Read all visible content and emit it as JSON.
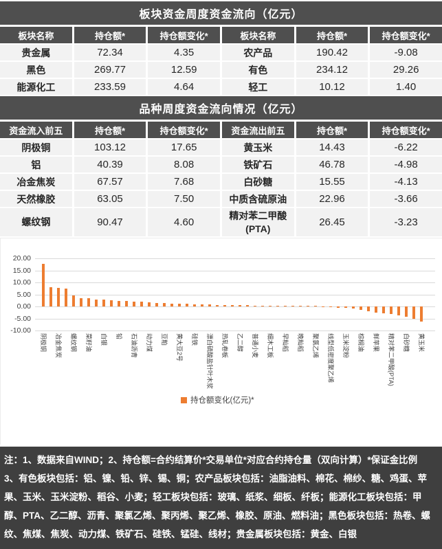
{
  "colors": {
    "header_bg": "#4F4F4F",
    "row_bg": "#F2F2F2",
    "bar": "#ED7D31",
    "notes_bg": "#3F3F3F",
    "gridline": "#D9D9D9"
  },
  "table1": {
    "title": "板块资金周度资金流向（亿元）",
    "headers": [
      "板块名称",
      "持仓额*",
      "持仓额变化*",
      "板块名称",
      "持仓额*",
      "持仓额变化*"
    ],
    "rows": [
      [
        "贵金属",
        "72.34",
        "4.35",
        "农产品",
        "190.42",
        "-9.08"
      ],
      [
        "黑色",
        "269.77",
        "12.59",
        "有色",
        "234.12",
        "29.26"
      ],
      [
        "能源化工",
        "233.59",
        "4.64",
        "轻工",
        "10.12",
        "1.40"
      ]
    ]
  },
  "table2": {
    "title": "品种周度资金流向情况（亿元）",
    "headers": [
      "资金流入前五",
      "持仓额*",
      "持仓额变化*",
      "资金流出前五",
      "持仓额*",
      "持仓额变化*"
    ],
    "rows": [
      [
        "阴极铜",
        "103.12",
        "17.65",
        "黄玉米",
        "14.43",
        "-6.22"
      ],
      [
        "铝",
        "40.39",
        "8.08",
        "铁矿石",
        "46.78",
        "-4.98"
      ],
      [
        "冶金焦炭",
        "67.57",
        "7.68",
        "白砂糖",
        "15.55",
        "-4.13"
      ],
      [
        "天然橡胶",
        "63.05",
        "7.50",
        "中质含硫原油",
        "22.96",
        "-3.66"
      ],
      [
        "螺纹钢",
        "90.47",
        "4.60",
        "精对苯二甲酸(PTA)",
        "26.45",
        "-3.23"
      ]
    ]
  },
  "chart_data": {
    "type": "bar",
    "title": "",
    "xlabel": "",
    "ylabel": "",
    "legend": "持仓额变化(亿元)*",
    "legend_position": "bottom",
    "grid": true,
    "ylim": [
      -10,
      20
    ],
    "ytick_values": [
      20,
      15,
      10,
      5,
      0,
      -5,
      -10
    ],
    "ytick_labels": [
      "20.00",
      "15.00",
      "10.00",
      "5.00",
      "0.00",
      "-5.00",
      "-10.00"
    ],
    "bar_color": "#ED7D31",
    "bars": [
      {
        "label": "阴极铜",
        "value": 17.65
      },
      {
        "label": "",
        "value": 8.08
      },
      {
        "label": "冶金焦炭",
        "value": 7.68
      },
      {
        "label": "",
        "value": 7.5
      },
      {
        "label": "螺纹钢",
        "value": 4.6
      },
      {
        "label": "",
        "value": 3.55
      },
      {
        "label": "菜籽油",
        "value": 3.4
      },
      {
        "label": "",
        "value": 3.0
      },
      {
        "label": "白银",
        "value": 2.8
      },
      {
        "label": "",
        "value": 2.6
      },
      {
        "label": "铅",
        "value": 2.4
      },
      {
        "label": "",
        "value": 2.25
      },
      {
        "label": "石油沥青",
        "value": 2.1
      },
      {
        "label": "",
        "value": 1.95
      },
      {
        "label": "动力煤",
        "value": 1.8
      },
      {
        "label": "",
        "value": 1.6
      },
      {
        "label": "豆粕",
        "value": 1.45
      },
      {
        "label": "",
        "value": 1.3
      },
      {
        "label": "黄大豆2号",
        "value": 1.2
      },
      {
        "label": "",
        "value": 1.1
      },
      {
        "label": "硅铁",
        "value": 1.0
      },
      {
        "label": "",
        "value": 0.9
      },
      {
        "label": "漂白硫酸盐针叶木浆",
        "value": 0.85
      },
      {
        "label": "",
        "value": 0.75
      },
      {
        "label": "热轧卷板",
        "value": 0.7
      },
      {
        "label": "",
        "value": 0.6
      },
      {
        "label": "乙二醇",
        "value": 0.55
      },
      {
        "label": "",
        "value": 0.5
      },
      {
        "label": "普通小麦",
        "value": 0.45
      },
      {
        "label": "",
        "value": 0.4
      },
      {
        "label": "细木工板",
        "value": 0.35
      },
      {
        "label": "",
        "value": 0.25
      },
      {
        "label": "早籼稻",
        "value": 0.2
      },
      {
        "label": "",
        "value": 0.15
      },
      {
        "label": "晚籼稻",
        "value": 0.1
      },
      {
        "label": "",
        "value": 0.1
      },
      {
        "label": "聚氯乙烯",
        "value": 0.05
      },
      {
        "label": "",
        "value": -0.1
      },
      {
        "label": "线型低密度聚乙烯",
        "value": -0.25
      },
      {
        "label": "",
        "value": -0.5
      },
      {
        "label": "玉米淀粉",
        "value": -0.65
      },
      {
        "label": "",
        "value": -0.95
      },
      {
        "label": "棕榈油",
        "value": -1.5
      },
      {
        "label": "",
        "value": -2.0
      },
      {
        "label": "鲜苹果",
        "value": -2.4
      },
      {
        "label": "",
        "value": -2.7
      },
      {
        "label": "精对苯二甲酸(PTA)",
        "value": -3.23
      },
      {
        "label": "",
        "value": -3.66
      },
      {
        "label": "白砂糖",
        "value": -4.13
      },
      {
        "label": "",
        "value": -4.98
      },
      {
        "label": "黄玉米",
        "value": -6.22
      }
    ]
  },
  "notes": {
    "line1": "注：1、数据来自WIND；2、持仓额=合约结算价*交易单位*对应合约持仓量（双向计算）*保证金比例",
    "line2": "3、有色板块包括：铝、镍、铅、锌、锡、铜；农产品板块包括：油脂油料、棉花、棉纱、糖、鸡蛋、苹果、玉米、玉米淀粉、稻谷、小麦；轻工板块包括：玻璃、纸浆、细板、纤板；能源化工板块包括：甲醇、PTA、乙二醇、沥青、聚氯乙烯、聚丙烯、聚乙烯、橡胶、原油、燃料油；黑色板块包括：热卷、螺纹、焦煤、焦炭、动力煤、铁矿石、硅铁、锰硅、线材；贵金属板块包括：黄金、白银"
  }
}
